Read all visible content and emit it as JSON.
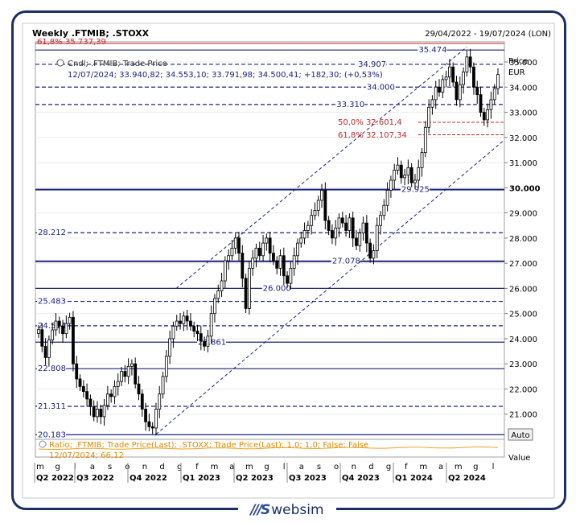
{
  "brand": {
    "logo": "///S",
    "name": "websim"
  },
  "chart_data": {
    "type": "candlestick",
    "title": "Weekly .FTMIB; .STOXX",
    "date_range": "29/04/2022 - 19/07/2024 (LON)",
    "legend": "Cndl; .FTMIB; Trade Price",
    "last_bar": "12/07/2024; 33.940,82; 34.553,10; 33.791,98; 34.500,41; +182,30; (+0,53%)",
    "y_axis_title": [
      "Price",
      "EUR"
    ],
    "ylim": [
      20000,
      35800
    ],
    "y_ticks": [
      {
        "v": 21000,
        "label": "21.000"
      },
      {
        "v": 22000,
        "label": "22.000"
      },
      {
        "v": 23000,
        "label": "23.000"
      },
      {
        "v": 24000,
        "label": "24.000"
      },
      {
        "v": 25000,
        "label": "25.000"
      },
      {
        "v": 26000,
        "label": "26.000"
      },
      {
        "v": 27000,
        "label": "27.000"
      },
      {
        "v": 28000,
        "label": "28.000"
      },
      {
        "v": 29000,
        "label": "29.000"
      },
      {
        "v": 30000,
        "label": "30.000",
        "bold": true
      },
      {
        "v": 31000,
        "label": "31.000"
      },
      {
        "v": 32000,
        "label": "32.000"
      },
      {
        "v": 33000,
        "label": "33.000"
      },
      {
        "v": 34000,
        "label": "34.000"
      },
      {
        "v": 35000,
        "label": "35.000"
      }
    ],
    "month_labels": [
      "m",
      "g",
      "l",
      "a",
      "s",
      "o",
      "n",
      "d",
      "g",
      "f",
      "m",
      "a",
      "m",
      "g",
      "l",
      "a",
      "s",
      "o",
      "n",
      "d",
      "g",
      "f",
      "m",
      "a",
      "m",
      "g",
      "l"
    ],
    "quarter_labels": [
      "Q2 2022",
      "Q3 2022",
      "Q4 2022",
      "Q1 2023",
      "Q2 2023",
      "Q3 2023",
      "Q4 2023",
      "Q1 2024",
      "Q2 2024"
    ],
    "levels": [
      {
        "value": 35474,
        "label": "35.474",
        "style": "solid"
      },
      {
        "value": 34907,
        "label": "34.907",
        "style": "dashed"
      },
      {
        "value": 34000,
        "label": "34.000",
        "style": "dashed"
      },
      {
        "value": 33310,
        "label": "33.310",
        "style": "dashed"
      },
      {
        "value": 29925,
        "label": "29.925",
        "style": "solid"
      },
      {
        "value": 28212,
        "label": "28.212",
        "style": "dashed"
      },
      {
        "value": 27078,
        "label": "27.078",
        "style": "solid"
      },
      {
        "value": 26000,
        "label": "26.000",
        "style": "solid"
      },
      {
        "value": 25483,
        "label": "25.483",
        "style": "dashed"
      },
      {
        "value": 24514,
        "label": "24.514",
        "style": "dashed"
      },
      {
        "value": 23861,
        "label": "23.861",
        "style": "solid"
      },
      {
        "value": 22808,
        "label": "22.808",
        "style": "solid"
      },
      {
        "value": 21311,
        "label": "21.311",
        "style": "dashed"
      },
      {
        "value": 20183,
        "label": "20.183",
        "style": "solid"
      }
    ],
    "fib_levels": [
      {
        "value": 35737.39,
        "label": "61,8% 35.737,39"
      },
      {
        "value": 32601.4,
        "label": "50,0% 32.601,4"
      },
      {
        "value": 32107.34,
        "label": "61,8% 32.107,34"
      }
    ],
    "closes": [
      24360,
      23700,
      23250,
      23950,
      24350,
      24700,
      24500,
      24200,
      24600,
      24850,
      23000,
      22400,
      22100,
      21900,
      21600,
      21300,
      20900,
      21200,
      20900,
      21350,
      21800,
      21700,
      22100,
      22300,
      22700,
      22500,
      22900,
      23000,
      22200,
      21800,
      21200,
      20700,
      20500,
      20450,
      21200,
      21800,
      22500,
      23300,
      24000,
      24500,
      24700,
      24600,
      24900,
      24700,
      24500,
      24300,
      24200,
      23900,
      23700,
      24100,
      25000,
      25600,
      25900,
      26300,
      27100,
      27300,
      27600,
      28000,
      27400,
      26400,
      25200,
      26800,
      27200,
      27600,
      27300,
      27800,
      28000,
      27400,
      27100,
      26800,
      27300,
      26500,
      26200,
      26800,
      27300,
      27800,
      28000,
      28300,
      28500,
      28900,
      29100,
      29500,
      29900,
      28700,
      28300,
      28000,
      28400,
      28800,
      28600,
      28300,
      28800,
      28000,
      27700,
      28200,
      28600,
      27800,
      27200,
      27500,
      28500,
      28900,
      29300,
      29900,
      30300,
      30700,
      30900,
      30400,
      30500,
      30800,
      30200,
      30300,
      30800,
      31400,
      32400,
      33200,
      33500,
      34000,
      33800,
      34300,
      34400,
      34800,
      34200,
      33500,
      34100,
      34600,
      35200,
      34800,
      34000,
      33700,
      33000,
      32700,
      33100,
      33500,
      33940,
      34500
    ],
    "regression_channel": {
      "upper_start": 26000,
      "upper_end": 35600,
      "lower_start": 20200,
      "lower_end": 31900
    },
    "lower_panel": {
      "legend": "Ratio; .FTMIB; Trade Price(Last); .STOXX; Trade Price(Last); 1,0; 1,0; False; False",
      "last_value": "12/07/2024; 66,12",
      "axis_button": "Auto",
      "axis_title": "Value"
    }
  }
}
